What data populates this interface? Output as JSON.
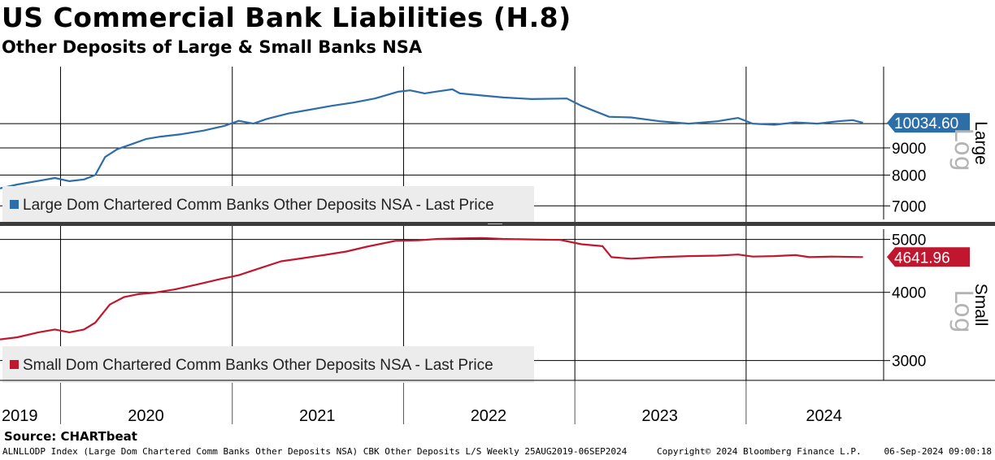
{
  "title": "US Commercial Bank Liabilities (H.8)",
  "subtitle": "Other Deposits of Large & Small Banks NSA",
  "source": "Source: CHARTbeat",
  "footer": {
    "left": "ALNLLODP Index (Large Dom Chartered Comm Banks Other Deposits NSA) CBK Other Deposits L/S  Weekly 25AUG2019-06SEP2024",
    "middle": "Copyright© 2024 Bloomberg Finance L.P.",
    "right": "06-Sep-2024 09:00:18"
  },
  "chart_data": [
    {
      "type": "line",
      "panel": "top",
      "side_label": "Large",
      "scale_label": "Log",
      "yscale": "log",
      "ylim": [
        6600,
        12800
      ],
      "yticks": [
        7000,
        8000,
        9000,
        10000
      ],
      "ytick_labels": [
        "7000",
        "8000",
        "9000",
        ""
      ],
      "grid": true,
      "legend_position": "bottom-left",
      "series": [
        {
          "name": "Large Dom Chartered Comm Banks Other Deposits NSA - Last Price",
          "color": "#2d6da8",
          "last_value": 10034.6,
          "last_value_label": "10034.60",
          "points": [
            [
              "2019-08-25",
              7550
            ],
            [
              "2019-10-01",
              7680
            ],
            [
              "2019-11-15",
              7800
            ],
            [
              "2019-12-20",
              7900
            ],
            [
              "2020-01-20",
              7790
            ],
            [
              "2020-02-20",
              7850
            ],
            [
              "2020-03-15",
              8000
            ],
            [
              "2020-04-05",
              8650
            ],
            [
              "2020-05-01",
              8950
            ],
            [
              "2020-06-01",
              9150
            ],
            [
              "2020-07-01",
              9350
            ],
            [
              "2020-08-01",
              9450
            ],
            [
              "2020-09-15",
              9550
            ],
            [
              "2020-11-01",
              9700
            ],
            [
              "2020-12-15",
              9900
            ],
            [
              "2021-01-15",
              10120
            ],
            [
              "2021-02-15",
              10000
            ],
            [
              "2021-03-15",
              10200
            ],
            [
              "2021-05-01",
              10450
            ],
            [
              "2021-06-15",
              10620
            ],
            [
              "2021-08-01",
              10800
            ],
            [
              "2021-09-15",
              10950
            ],
            [
              "2021-11-01",
              11150
            ],
            [
              "2021-12-20",
              11480
            ],
            [
              "2022-01-15",
              11550
            ],
            [
              "2022-02-15",
              11400
            ],
            [
              "2022-03-15",
              11500
            ],
            [
              "2022-04-15",
              11600
            ],
            [
              "2022-05-01",
              11400
            ],
            [
              "2022-06-15",
              11300
            ],
            [
              "2022-08-01",
              11200
            ],
            [
              "2022-10-01",
              11120
            ],
            [
              "2022-12-15",
              11150
            ],
            [
              "2023-01-15",
              10800
            ],
            [
              "2023-03-15",
              10300
            ],
            [
              "2023-05-01",
              10270
            ],
            [
              "2023-07-01",
              10100
            ],
            [
              "2023-09-01",
              10000
            ],
            [
              "2023-11-01",
              10100
            ],
            [
              "2023-12-15",
              10250
            ],
            [
              "2024-01-15",
              10000
            ],
            [
              "2024-03-01",
              9950
            ],
            [
              "2024-04-15",
              10050
            ],
            [
              "2024-06-01",
              10000
            ],
            [
              "2024-07-15",
              10100
            ],
            [
              "2024-08-15",
              10150
            ],
            [
              "2024-09-06",
              10034.6
            ]
          ]
        }
      ]
    },
    {
      "type": "line",
      "panel": "bottom",
      "side_label": "Small",
      "scale_label": "Log",
      "yscale": "log",
      "ylim": [
        2760,
        5220
      ],
      "yticks": [
        3000,
        4000,
        5000
      ],
      "ytick_labels": [
        "3000",
        "4000",
        "5000"
      ],
      "grid": true,
      "legend_position": "bottom-left",
      "series": [
        {
          "name": "Small Dom Chartered Comm Banks Other Deposits NSA - Last Price",
          "color": "#c0172f",
          "last_value": 4641.96,
          "last_value_label": "4641.96",
          "points": [
            [
              "2019-08-25",
              3280
            ],
            [
              "2019-10-01",
              3310
            ],
            [
              "2019-11-15",
              3380
            ],
            [
              "2019-12-20",
              3420
            ],
            [
              "2020-01-20",
              3380
            ],
            [
              "2020-02-20",
              3420
            ],
            [
              "2020-03-15",
              3520
            ],
            [
              "2020-04-15",
              3800
            ],
            [
              "2020-05-15",
              3920
            ],
            [
              "2020-06-15",
              3970
            ],
            [
              "2020-07-15",
              3990
            ],
            [
              "2020-09-01",
              4050
            ],
            [
              "2020-10-15",
              4130
            ],
            [
              "2020-12-01",
              4220
            ],
            [
              "2021-01-15",
              4300
            ],
            [
              "2021-03-01",
              4430
            ],
            [
              "2021-04-15",
              4560
            ],
            [
              "2021-06-01",
              4620
            ],
            [
              "2021-07-15",
              4680
            ],
            [
              "2021-09-01",
              4750
            ],
            [
              "2021-10-15",
              4850
            ],
            [
              "2021-12-15",
              4970
            ],
            [
              "2022-02-01",
              4980
            ],
            [
              "2022-03-15",
              5010
            ],
            [
              "2022-05-01",
              5020
            ],
            [
              "2022-06-15",
              5030
            ],
            [
              "2022-08-01",
              5010
            ],
            [
              "2022-10-01",
              5000
            ],
            [
              "2022-12-01",
              4990
            ],
            [
              "2023-01-15",
              4900
            ],
            [
              "2023-03-01",
              4860
            ],
            [
              "2023-03-20",
              4640
            ],
            [
              "2023-05-01",
              4610
            ],
            [
              "2023-07-01",
              4640
            ],
            [
              "2023-09-01",
              4660
            ],
            [
              "2023-11-01",
              4670
            ],
            [
              "2023-12-15",
              4690
            ],
            [
              "2024-01-15",
              4650
            ],
            [
              "2024-03-01",
              4660
            ],
            [
              "2024-04-15",
              4680
            ],
            [
              "2024-05-15",
              4640
            ],
            [
              "2024-07-01",
              4650
            ],
            [
              "2024-09-06",
              4641.96
            ]
          ]
        }
      ]
    }
  ],
  "x_axis": {
    "labels": [
      "2019",
      "2020",
      "2021",
      "2022",
      "2023",
      "2024"
    ],
    "year_label_dates": [
      "2019-10-06",
      "2020-07-01",
      "2021-07-01",
      "2022-07-01",
      "2023-07-01",
      "2024-06-15"
    ],
    "gridline_dates": [
      "2020-01-01",
      "2021-01-01",
      "2022-01-01",
      "2023-01-01",
      "2024-01-01"
    ],
    "range": [
      "2019-08-25",
      "2024-10-20"
    ]
  }
}
